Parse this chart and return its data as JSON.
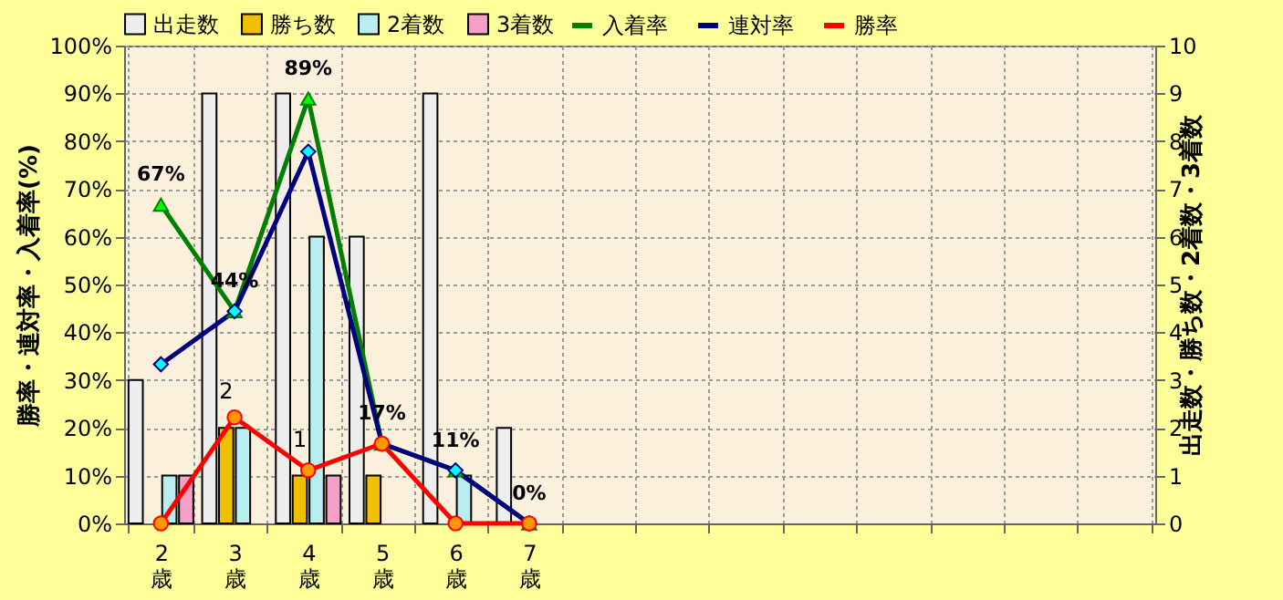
{
  "chart_data": {
    "type": "bar",
    "categories": [
      "2歳",
      "3歳",
      "4歳",
      "5歳",
      "6歳",
      "7歳",
      null,
      null,
      null,
      null,
      null,
      null,
      null,
      null
    ],
    "ylabel": "勝率・連対率・入着率(%)",
    "y2label": "出走数・勝ち数・2着数・3着数",
    "ylim": [
      0,
      100
    ],
    "yticks": [
      {
        "value": 0,
        "label": "0%"
      },
      {
        "value": 10,
        "label": "10%"
      },
      {
        "value": 20,
        "label": "20%"
      },
      {
        "value": 30,
        "label": "30%"
      },
      {
        "value": 40,
        "label": "40%"
      },
      {
        "value": 50,
        "label": "50%"
      },
      {
        "value": 60,
        "label": "60%"
      },
      {
        "value": 70,
        "label": "70%"
      },
      {
        "value": 80,
        "label": "80%"
      },
      {
        "value": 90,
        "label": "90%"
      },
      {
        "value": 100,
        "label": "100%"
      }
    ],
    "y2lim": [
      0,
      10
    ],
    "y2ticks": [
      0,
      1,
      2,
      3,
      4,
      5,
      6,
      7,
      8,
      9,
      10
    ],
    "grid": true,
    "legend": "top",
    "series": [
      {
        "name": "出走数",
        "axis": "y2",
        "color": "#eeeeee",
        "values": [
          3,
          9,
          9,
          6,
          9,
          2,
          null,
          null,
          null,
          null,
          null,
          null,
          null,
          null
        ]
      },
      {
        "name": "勝ち数",
        "axis": "y2",
        "color": "#f0c000",
        "values": [
          0,
          2,
          1,
          1,
          0,
          0,
          null,
          null,
          null,
          null,
          null,
          null,
          null,
          null
        ],
        "value_labels": [
          null,
          "2",
          "1",
          null,
          null,
          null,
          null,
          null,
          null,
          null,
          null,
          null,
          null,
          null
        ]
      },
      {
        "name": "2着数",
        "axis": "y2",
        "color": "#b8eef0",
        "values": [
          1,
          2,
          6,
          0,
          1,
          0,
          null,
          null,
          null,
          null,
          null,
          null,
          null,
          null
        ]
      },
      {
        "name": "3着数",
        "axis": "y2",
        "color": "#f4a0c8",
        "values": [
          1,
          0,
          1,
          0,
          0,
          0,
          null,
          null,
          null,
          null,
          null,
          null,
          null,
          null
        ]
      },
      {
        "name": "入着率",
        "type": "line",
        "color": "#008000",
        "marker": "triangle",
        "values": [
          66.7,
          44.4,
          88.9,
          16.7,
          11.1,
          0,
          null,
          null,
          null,
          null,
          null,
          null,
          null,
          null
        ],
        "value_labels": [
          "67%",
          "44%",
          "89%",
          "17%",
          "11%",
          "0%",
          null,
          null,
          null,
          null,
          null,
          null,
          null,
          null
        ]
      },
      {
        "name": "連対率",
        "type": "line",
        "color": "#000080",
        "marker": "diamond",
        "values": [
          33.3,
          44.4,
          77.8,
          16.7,
          11.1,
          0,
          null,
          null,
          null,
          null,
          null,
          null,
          null,
          null
        ]
      },
      {
        "name": "勝率",
        "type": "line",
        "color": "#ff0000",
        "marker": "circle",
        "values": [
          0,
          22.2,
          11.1,
          16.7,
          0,
          0,
          null,
          null,
          null,
          null,
          null,
          null,
          null,
          null
        ]
      }
    ]
  }
}
